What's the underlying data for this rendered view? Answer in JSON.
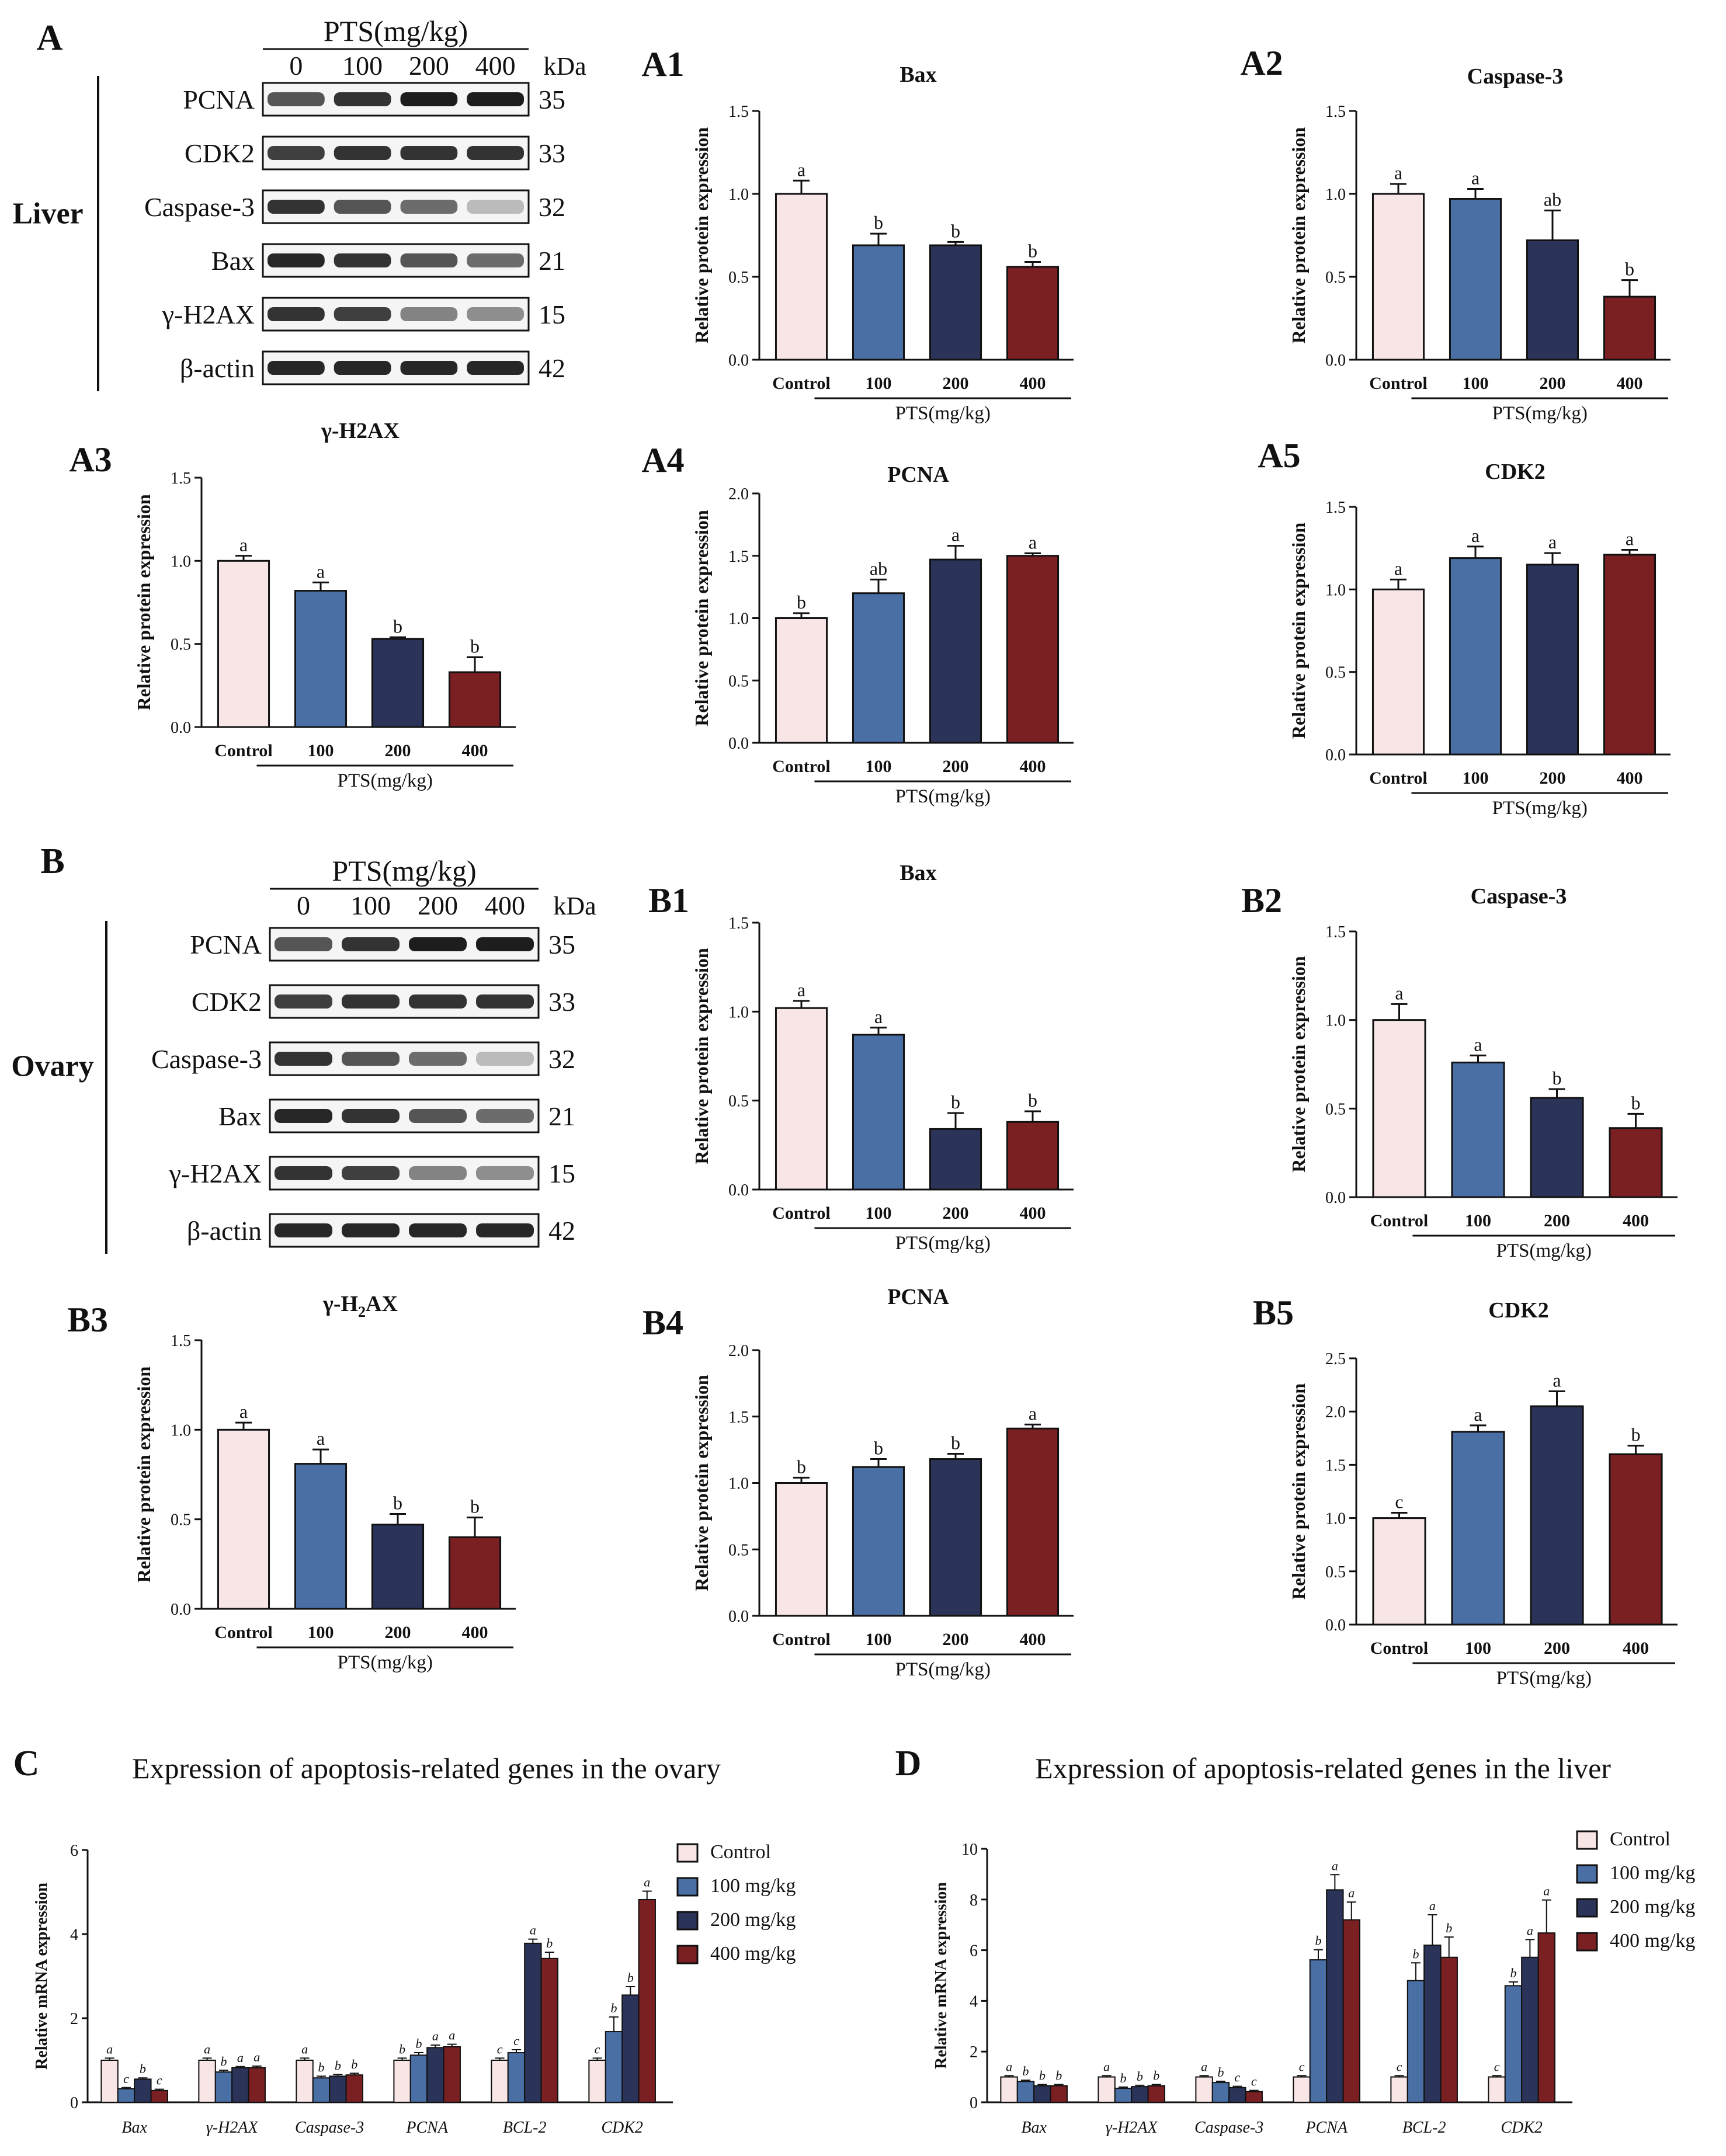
{
  "colors": {
    "control": "#f8e6e6",
    "control_b": "#fbeff0",
    "d100": "#4a6fa5",
    "d200": "#2b3458",
    "d400": "#7a1f22",
    "d100_line": "#4f77b0",
    "d200_line": "#2b3458",
    "d400_line": "#8a2426"
  },
  "panel_A": {
    "letter": "A",
    "title": "PTS(mg/kg)",
    "doses": [
      "0",
      "100",
      "200",
      "400"
    ],
    "kda_label": "kDa",
    "tissue": "Liver",
    "blots": [
      {
        "name": "PCNA",
        "kda": "35"
      },
      {
        "name": "CDK2",
        "kda": "33"
      },
      {
        "name": "Caspase-3",
        "kda": "32"
      },
      {
        "name": "Bax",
        "kda": "21"
      },
      {
        "name": "γ-H2AX",
        "kda": "15"
      },
      {
        "name": "β-actin",
        "kda": "42"
      }
    ]
  },
  "panel_B": {
    "letter": "B",
    "title": "PTS(mg/kg)",
    "doses": [
      "0",
      "100",
      "200",
      "400"
    ],
    "kda_label": "kDa",
    "tissue": "Ovary",
    "blots": [
      {
        "name": "PCNA",
        "kda": "35"
      },
      {
        "name": "CDK2",
        "kda": "33"
      },
      {
        "name": "Caspase-3",
        "kda": "32"
      },
      {
        "name": "Bax",
        "kda": "21"
      },
      {
        "name": "γ-H2AX",
        "kda": "15"
      },
      {
        "name": "β-actin",
        "kda": "42"
      }
    ]
  },
  "chart_data": [
    {
      "id": "A1",
      "type": "bar",
      "title": "Bax",
      "ylabel": "Relative protein expression",
      "xgroup": "PTS(mg/kg)",
      "categories": [
        "Control",
        "100",
        "200",
        "400"
      ],
      "values": [
        1.0,
        0.69,
        0.69,
        0.56
      ],
      "errors": [
        0.08,
        0.07,
        0.02,
        0.03
      ],
      "letters": [
        "a",
        "b",
        "b",
        "b"
      ],
      "ylim": [
        0,
        1.5
      ],
      "ticks": [
        "0.0",
        "0.5",
        "1.0",
        "1.5"
      ]
    },
    {
      "id": "A2",
      "type": "bar",
      "title": "Caspase-3",
      "ylabel": "Relative protein expression",
      "xgroup": "PTS(mg/kg)",
      "categories": [
        "Control",
        "100",
        "200",
        "400"
      ],
      "values": [
        1.0,
        0.97,
        0.72,
        0.38
      ],
      "errors": [
        0.06,
        0.06,
        0.18,
        0.1
      ],
      "letters": [
        "a",
        "a",
        "ab",
        "b"
      ],
      "ylim": [
        0,
        1.5
      ],
      "ticks": [
        "0.0",
        "0.5",
        "1.0",
        "1.5"
      ]
    },
    {
      "id": "A3",
      "type": "bar",
      "title": "γ-H2AX",
      "ylabel": "Relative protein expression",
      "xgroup": "PTS(mg/kg)",
      "categories": [
        "Control",
        "100",
        "200",
        "400"
      ],
      "values": [
        1.0,
        0.82,
        0.53,
        0.33
      ],
      "errors": [
        0.03,
        0.05,
        0.01,
        0.09
      ],
      "letters": [
        "a",
        "a",
        "b",
        "b"
      ],
      "ylim": [
        0,
        1.5
      ],
      "ticks": [
        "0.0",
        "0.5",
        "1.0",
        "1.5"
      ]
    },
    {
      "id": "A4",
      "type": "bar",
      "title": "PCNA",
      "ylabel": "Relative protein expression",
      "xgroup": "PTS(mg/kg)",
      "categories": [
        "Control",
        "100",
        "200",
        "400"
      ],
      "values": [
        1.0,
        1.2,
        1.47,
        1.5
      ],
      "errors": [
        0.04,
        0.11,
        0.11,
        0.02
      ],
      "letters": [
        "b",
        "ab",
        "a",
        "a"
      ],
      "ylim": [
        0,
        2.0
      ],
      "ticks": [
        "0.0",
        "0.5",
        "1.0",
        "1.5",
        "2.0"
      ]
    },
    {
      "id": "A5",
      "type": "bar",
      "title": "CDK2",
      "ylabel": "Relative protein expression",
      "xgroup": "PTS(mg/kg)",
      "categories": [
        "Control",
        "100",
        "200",
        "400"
      ],
      "values": [
        1.0,
        1.19,
        1.15,
        1.21
      ],
      "errors": [
        0.06,
        0.07,
        0.07,
        0.03
      ],
      "letters": [
        "a",
        "a",
        "a",
        "a"
      ],
      "ylim": [
        0,
        1.5
      ],
      "ticks": [
        "0.0",
        "0.5",
        "1.0",
        "1.5"
      ]
    },
    {
      "id": "B1",
      "type": "bar",
      "title": "Bax",
      "ylabel": "Relative protein expression",
      "xgroup": "PTS(mg/kg)",
      "categories": [
        "Control",
        "100",
        "200",
        "400"
      ],
      "values": [
        1.02,
        0.87,
        0.34,
        0.38
      ],
      "errors": [
        0.04,
        0.04,
        0.09,
        0.06
      ],
      "letters": [
        "a",
        "a",
        "b",
        "b"
      ],
      "ylim": [
        0,
        1.5
      ],
      "ticks": [
        "0.0",
        "0.5",
        "1.0",
        "1.5"
      ]
    },
    {
      "id": "B2",
      "type": "bar",
      "title": "Caspase-3",
      "ylabel": "Relative protein expression",
      "xgroup": "PTS(mg/kg)",
      "categories": [
        "Control",
        "100",
        "200",
        "400"
      ],
      "values": [
        1.0,
        0.76,
        0.56,
        0.39
      ],
      "errors": [
        0.09,
        0.04,
        0.05,
        0.08
      ],
      "letters": [
        "a",
        "a",
        "b",
        "b"
      ],
      "ylim": [
        0,
        1.5
      ],
      "ticks": [
        "0.0",
        "0.5",
        "1.0",
        "1.5"
      ]
    },
    {
      "id": "B3",
      "type": "bar",
      "title": "γ-H2AX",
      "sub": "2",
      "ylabel": "Relative protein expression",
      "xgroup": "PTS(mg/kg)",
      "categories": [
        "Control",
        "100",
        "200",
        "400"
      ],
      "values": [
        1.0,
        0.81,
        0.47,
        0.4
      ],
      "errors": [
        0.04,
        0.08,
        0.06,
        0.11
      ],
      "letters": [
        "a",
        "a",
        "b",
        "b"
      ],
      "ylim": [
        0,
        1.5
      ],
      "ticks": [
        "0.0",
        "0.5",
        "1.0",
        "1.5"
      ]
    },
    {
      "id": "B4",
      "type": "bar",
      "title": "PCNA",
      "ylabel": "Relative protein expression",
      "xgroup": "PTS(mg/kg)",
      "categories": [
        "Control",
        "100",
        "200",
        "400"
      ],
      "values": [
        1.0,
        1.12,
        1.18,
        1.41
      ],
      "errors": [
        0.04,
        0.06,
        0.04,
        0.03
      ],
      "letters": [
        "b",
        "b",
        "b",
        "a"
      ],
      "ylim": [
        0,
        2.0
      ],
      "ticks": [
        "0.0",
        "0.5",
        "1.0",
        "1.5",
        "2.0"
      ]
    },
    {
      "id": "B5",
      "type": "bar",
      "title": "CDK2",
      "ylabel": "Relative protein expression",
      "xgroup": "PTS(mg/kg)",
      "categories": [
        "Control",
        "100",
        "200",
        "400"
      ],
      "values": [
        1.0,
        1.81,
        2.05,
        1.6
      ],
      "errors": [
        0.05,
        0.06,
        0.14,
        0.08
      ],
      "letters": [
        "c",
        "a",
        "a",
        "b"
      ],
      "ylim": [
        0,
        2.5
      ],
      "ticks": [
        "0.0",
        "0.5",
        "1.0",
        "1.5",
        "2.0",
        "2.5"
      ]
    },
    {
      "id": "C",
      "type": "bar",
      "title": "Expression of apoptosis-related genes in the ovary",
      "ylabel": "Relative mRNA expression",
      "ylim": [
        0,
        6
      ],
      "ticks": [
        "0",
        "2",
        "4",
        "6"
      ],
      "categories": [
        "Bax",
        "γ-H2AX",
        "Caspase-3",
        "PCNA",
        "BCL-2",
        "CDK2"
      ],
      "legend": [
        "Control",
        "100 mg/kg",
        "200 mg/kg",
        "400 mg/kg"
      ],
      "series": [
        {
          "name": "Control",
          "values": [
            1.0,
            1.0,
            1.0,
            1.0,
            1.0,
            1.0
          ],
          "errors": [
            0.05,
            0.05,
            0.05,
            0.05,
            0.05,
            0.05
          ],
          "letters": [
            "a",
            "a",
            "a",
            "b",
            "c",
            "c"
          ]
        },
        {
          "name": "100 mg/kg",
          "values": [
            0.32,
            0.72,
            0.58,
            1.12,
            1.18,
            1.68
          ],
          "errors": [
            0.03,
            0.04,
            0.04,
            0.06,
            0.07,
            0.35
          ],
          "letters": [
            "c",
            "b",
            "b",
            "b",
            "c",
            "b"
          ]
        },
        {
          "name": "200 mg/kg",
          "values": [
            0.55,
            0.82,
            0.62,
            1.3,
            3.78,
            2.55
          ],
          "errors": [
            0.03,
            0.03,
            0.04,
            0.06,
            0.1,
            0.2
          ],
          "letters": [
            "b",
            "a",
            "b",
            "a",
            "a",
            "b"
          ]
        },
        {
          "name": "400 mg/kg",
          "values": [
            0.28,
            0.82,
            0.65,
            1.32,
            3.42,
            4.82
          ],
          "errors": [
            0.03,
            0.04,
            0.04,
            0.06,
            0.15,
            0.2
          ],
          "letters": [
            "c",
            "a",
            "b",
            "a",
            "b",
            "a"
          ]
        }
      ]
    },
    {
      "id": "D",
      "type": "bar",
      "title": "Expression of apoptosis-related genes in the liver",
      "ylabel": "Relative mRNA expression",
      "ylim": [
        0,
        10
      ],
      "ticks": [
        "0",
        "2",
        "4",
        "6",
        "8",
        "10"
      ],
      "categories": [
        "Bax",
        "γ-H2AX",
        "Caspase-3",
        "PCNA",
        "BCL-2",
        "CDK2"
      ],
      "legend": [
        "Control",
        "100 mg/kg",
        "200 mg/kg",
        "400 mg/kg"
      ],
      "series": [
        {
          "name": "Control",
          "values": [
            1.0,
            1.0,
            1.0,
            1.0,
            1.0,
            1.0
          ],
          "errors": [
            0.05,
            0.05,
            0.05,
            0.05,
            0.05,
            0.05
          ],
          "letters": [
            "a",
            "a",
            "a",
            "c",
            "c",
            "c"
          ]
        },
        {
          "name": "100 mg/kg",
          "values": [
            0.82,
            0.55,
            0.78,
            5.62,
            4.8,
            4.6
          ],
          "errors": [
            0.05,
            0.05,
            0.05,
            0.4,
            0.7,
            0.15
          ],
          "letters": [
            "b",
            "b",
            "b",
            "b",
            "b",
            "b"
          ]
        },
        {
          "name": "200 mg/kg",
          "values": [
            0.65,
            0.62,
            0.58,
            8.38,
            6.2,
            5.72
          ],
          "errors": [
            0.05,
            0.05,
            0.05,
            0.6,
            1.2,
            0.7
          ],
          "letters": [
            "b",
            "b",
            "c",
            "a",
            "a",
            "a"
          ]
        },
        {
          "name": "400 mg/kg",
          "values": [
            0.65,
            0.65,
            0.42,
            7.2,
            5.72,
            6.68
          ],
          "errors": [
            0.05,
            0.05,
            0.05,
            0.7,
            0.8,
            1.3
          ],
          "letters": [
            "b",
            "b",
            "c",
            "a",
            "b",
            "a"
          ]
        }
      ]
    }
  ]
}
